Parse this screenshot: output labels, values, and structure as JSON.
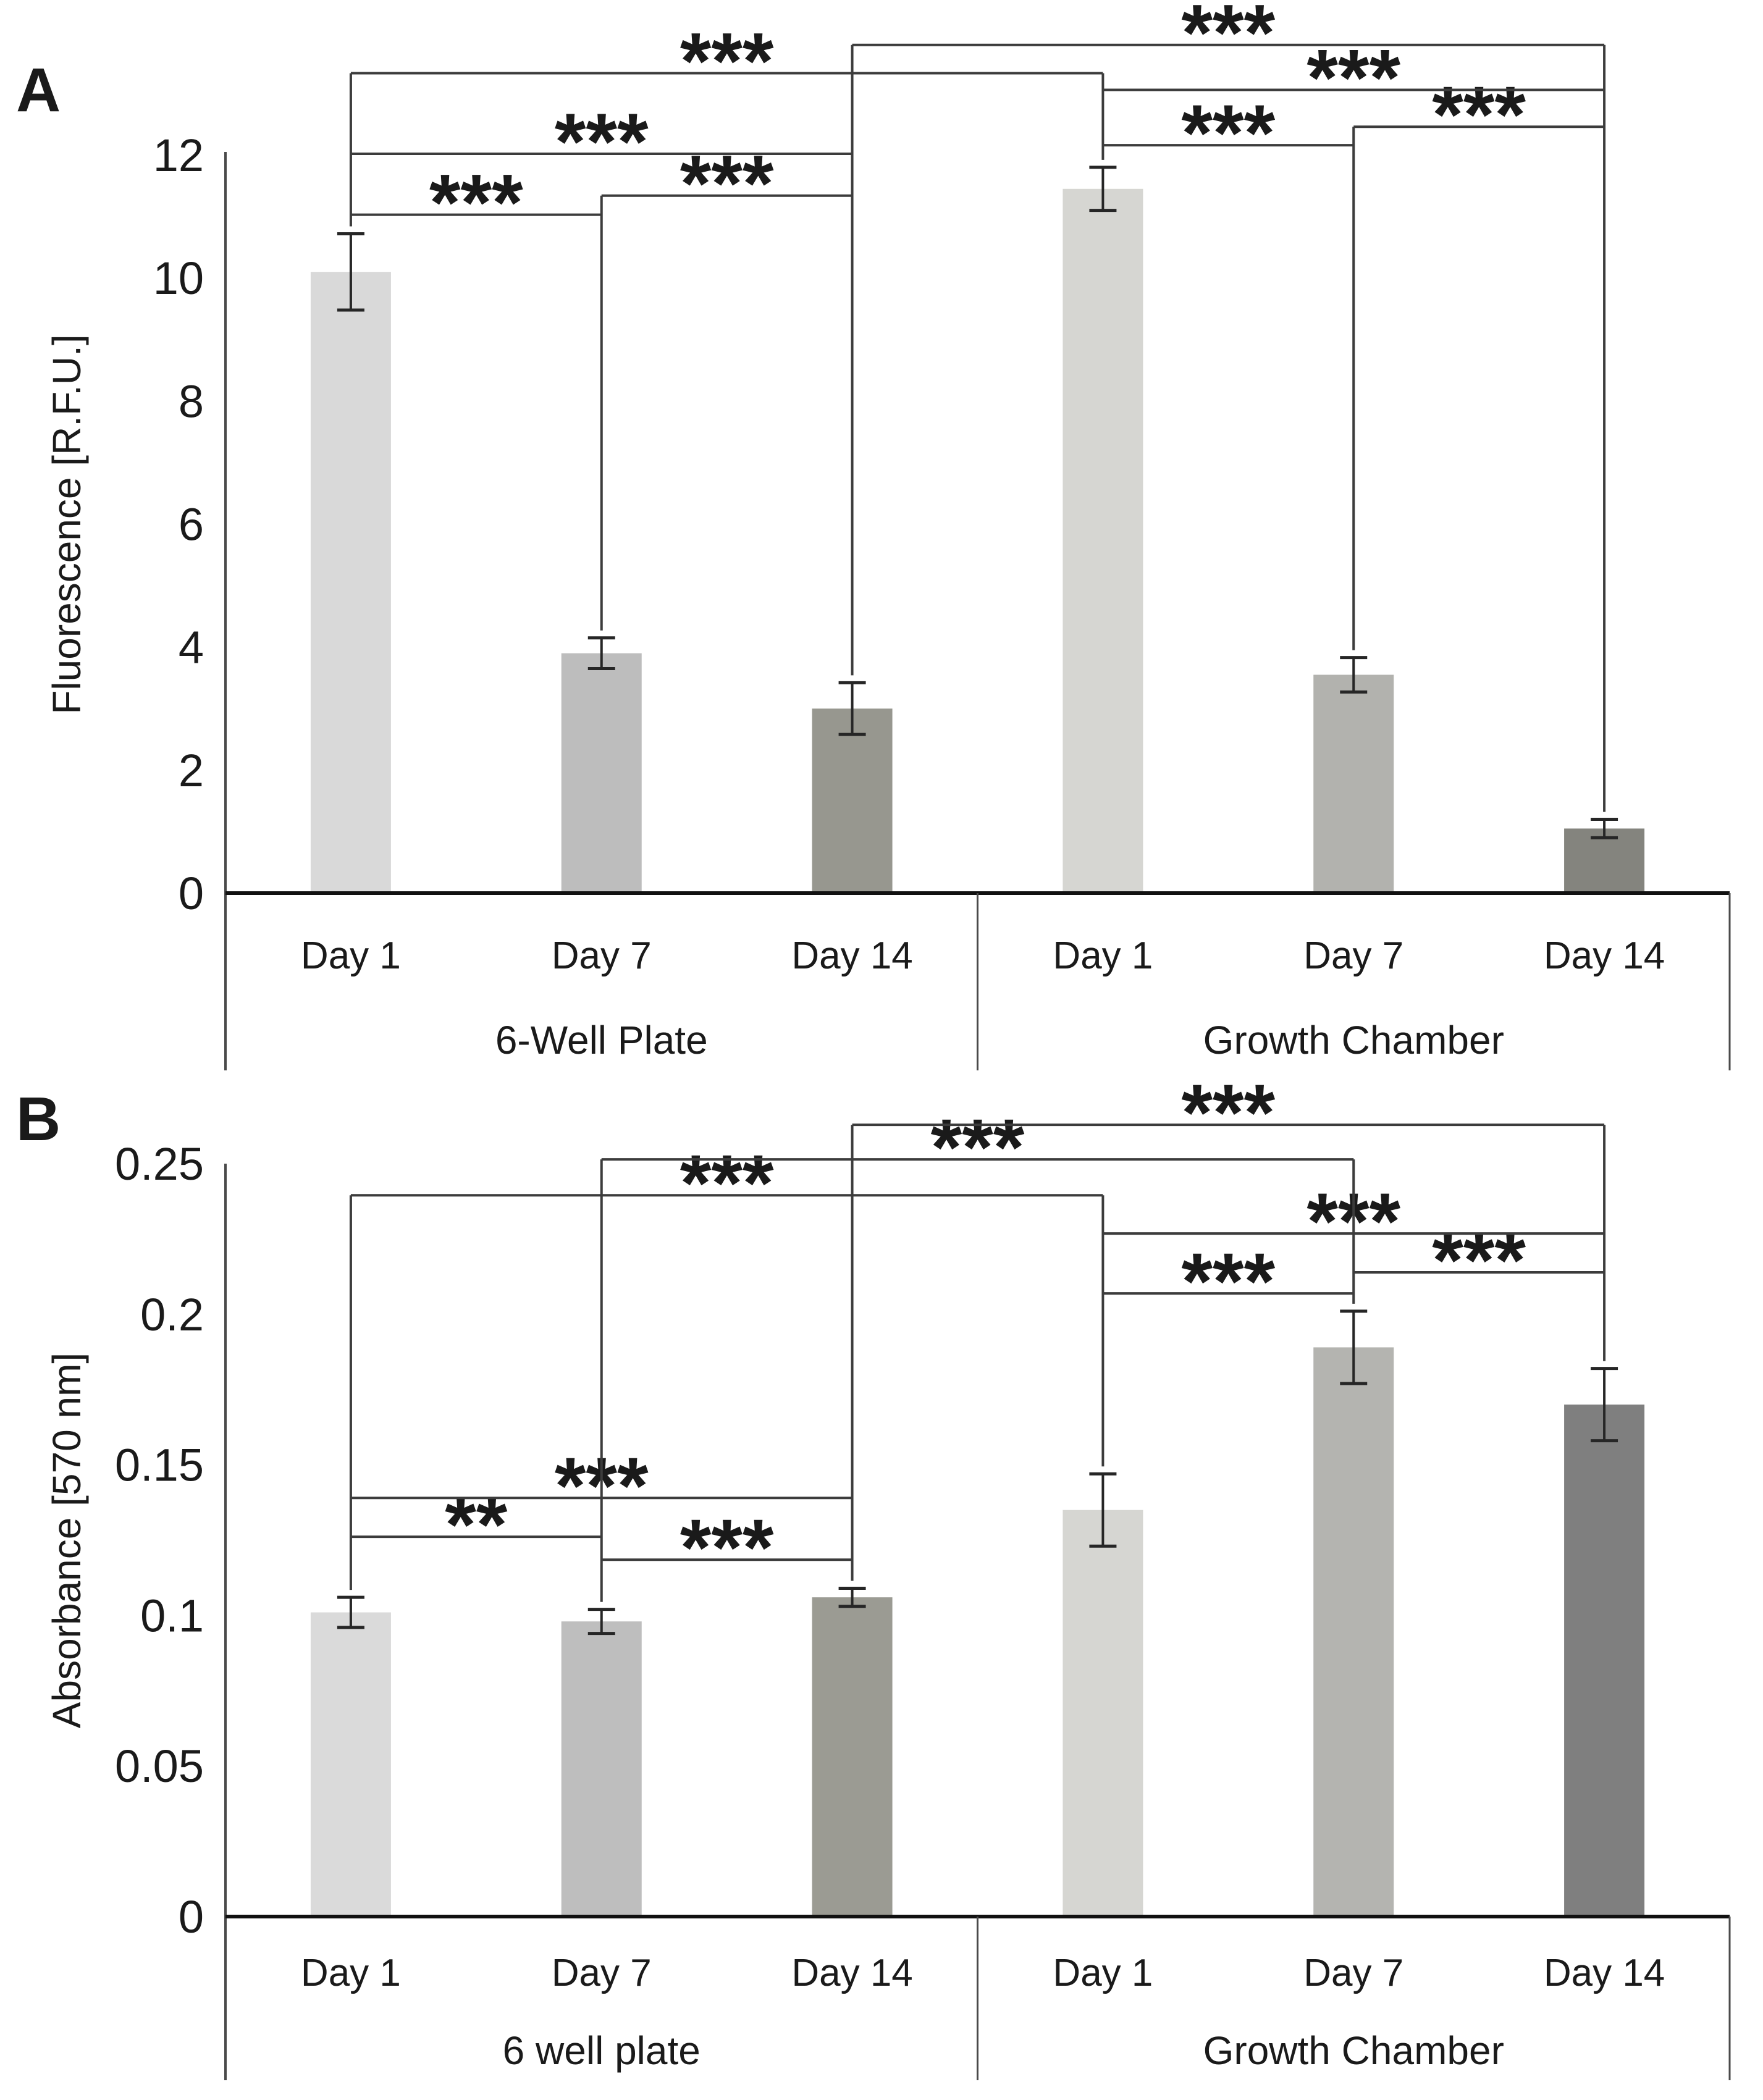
{
  "figure": {
    "panel_labels": [
      "A",
      "B"
    ]
  },
  "chart_data": [
    {
      "type": "bar",
      "panel": "A",
      "title": "",
      "xlabel": "",
      "ylabel": "Fluorescence [R.F.U.]",
      "ylim": [
        0,
        12
      ],
      "grid": false,
      "yticks": [
        {
          "v": 12,
          "t": "12"
        },
        {
          "v": 10,
          "t": "10"
        },
        {
          "v": 8,
          "t": "8"
        },
        {
          "v": 6,
          "t": "6"
        },
        {
          "v": 4,
          "t": "4"
        },
        {
          "v": 2,
          "t": "2"
        },
        {
          "v": 0,
          "t": "0"
        }
      ],
      "groups": [
        {
          "label": "6-Well Plate"
        },
        {
          "label": "Growth Chamber"
        }
      ],
      "categories": [
        "Day 1",
        "Day 7",
        "Day 14",
        "Day 1",
        "Day 7",
        "Day 14"
      ],
      "series": [
        {
          "name": "fluorescence_rfu",
          "values": [
            10.1,
            3.9,
            3.0,
            11.45,
            3.55,
            1.05
          ],
          "errors": [
            0.62,
            0.25,
            0.42,
            0.35,
            0.28,
            0.15
          ]
        }
      ],
      "bar_colors": [
        "#d9d9d9",
        "#bdbdbd",
        "#97978f",
        "#d6d6d2",
        "#b2b2ae",
        "#84847e"
      ],
      "significance": [
        {
          "a": 0,
          "b": 1,
          "label": "***",
          "level": 11.03
        },
        {
          "a": 1,
          "b": 2,
          "label": "***",
          "level": 11.34
        },
        {
          "a": 0,
          "b": 2,
          "label": "***",
          "level": 12.02
        },
        {
          "a": 0,
          "b": 3,
          "label": "***",
          "level": 13.33
        },
        {
          "a": 3,
          "b": 4,
          "label": "***",
          "level": 12.16
        },
        {
          "a": 4,
          "b": 5,
          "label": "***",
          "level": 12.46
        },
        {
          "a": 3,
          "b": 5,
          "label": "***",
          "level": 13.06
        },
        {
          "a": 2,
          "b": 5,
          "label": "***",
          "level": 13.79
        }
      ]
    },
    {
      "type": "bar",
      "panel": "B",
      "title": "",
      "xlabel": "",
      "ylabel": "Absorbance [570 nm]",
      "ylim": [
        0,
        0.25
      ],
      "grid": false,
      "yticks": [
        {
          "v": 0.25,
          "t": "0.25"
        },
        {
          "v": 0.2,
          "t": "0.2"
        },
        {
          "v": 0.15,
          "t": "0.15"
        },
        {
          "v": 0.1,
          "t": "0.1"
        },
        {
          "v": 0.05,
          "t": "0.05"
        },
        {
          "v": 0,
          "t": "0"
        }
      ],
      "groups": [
        {
          "label": "6 well plate"
        },
        {
          "label": "Growth Chamber"
        }
      ],
      "categories": [
        "Day 1",
        "Day 7",
        "Day 14",
        "Day 1",
        "Day 7",
        "Day 14"
      ],
      "series": [
        {
          "name": "absorbance_570nm",
          "values": [
            0.101,
            0.098,
            0.106,
            0.135,
            0.189,
            0.17
          ],
          "errors": [
            0.005,
            0.004,
            0.003,
            0.012,
            0.012,
            0.012
          ]
        }
      ],
      "bar_colors": [
        "#dadada",
        "#bebebe",
        "#9b9b93",
        "#d6d6d2",
        "#b4b4b0",
        "#7f7f7f"
      ],
      "significance": [
        {
          "a": 0,
          "b": 1,
          "label": "**",
          "level": 0.1261
        },
        {
          "a": 1,
          "b": 2,
          "label": "***",
          "level": 0.1185
        },
        {
          "a": 0,
          "b": 2,
          "label": "***",
          "level": 0.139
        },
        {
          "a": 0,
          "b": 3,
          "label": "***",
          "level": 0.2395
        },
        {
          "a": 1,
          "b": 4,
          "label": "***",
          "level": 0.2514
        },
        {
          "a": 2,
          "b": 5,
          "label": "***",
          "level": 0.2629
        },
        {
          "a": 3,
          "b": 4,
          "label": "***",
          "level": 0.2069
        },
        {
          "a": 4,
          "b": 5,
          "label": "***",
          "level": 0.2139
        },
        {
          "a": 3,
          "b": 5,
          "label": "***",
          "level": 0.2268
        }
      ]
    }
  ]
}
